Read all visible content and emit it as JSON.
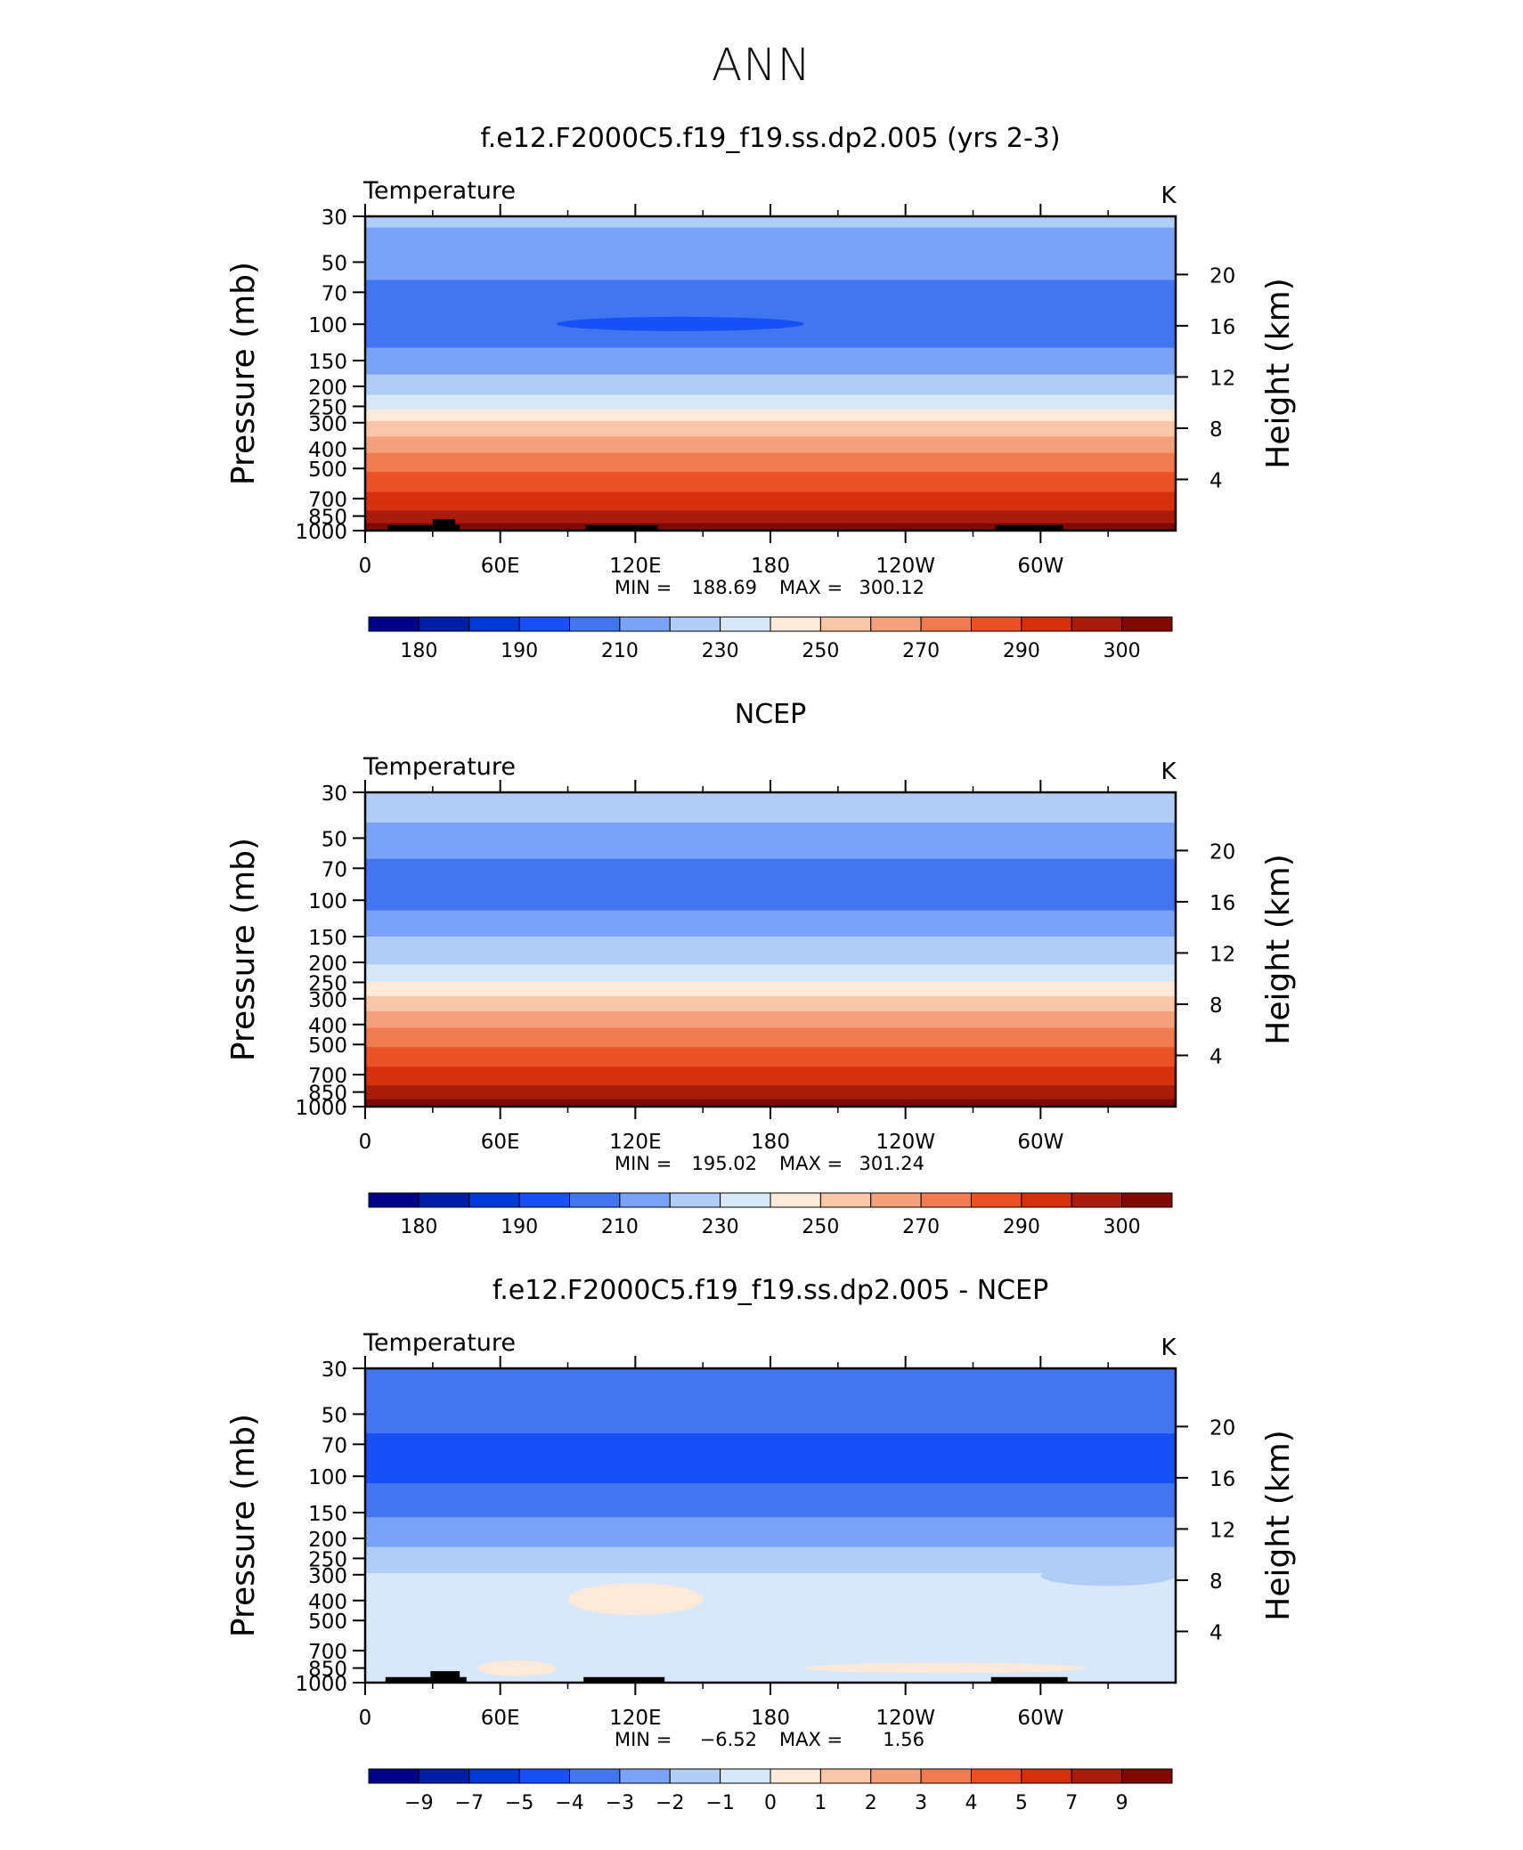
{
  "title": "ANN",
  "chart_data": [
    {
      "type": "heatmap",
      "title": "f.e12.F2000C5.f19_f19.ss.dp2.005 (yrs 2-3)",
      "variable": "Temperature",
      "units": "K",
      "ylabel": "Pressure  (mb)",
      "ylabel_right": "Height  (km)",
      "x_ticks": [
        "0",
        "60E",
        "120E",
        "180",
        "120W",
        "60W"
      ],
      "x_range": [
        0,
        360
      ],
      "y_ticks": [
        "30",
        "50",
        "70",
        "100",
        "150",
        "200",
        "250",
        "300",
        "400",
        "500",
        "700",
        "850",
        "1000"
      ],
      "y_right_ticks": [
        "20",
        "16",
        "12",
        "8",
        "4"
      ],
      "stats": {
        "min_label": "MIN  =",
        "min": "188.69",
        "max_label": "MAX  =",
        "max": "300.12"
      },
      "levels": [
        "175",
        "180",
        "185",
        "190",
        "200",
        "210",
        "220",
        "230",
        "240",
        "250",
        "260",
        "270",
        "280",
        "290",
        "295",
        "300"
      ],
      "colorbar_labels": [
        "180",
        "190",
        "210",
        "230",
        "250",
        "270",
        "290",
        "300"
      ],
      "bands": [
        {
          "p_top": 30,
          "p_bottom": 34,
          "color_index": 6
        },
        {
          "p_top": 34,
          "p_bottom": 61,
          "color_index": 5
        },
        {
          "p_top": 61,
          "p_bottom": 130,
          "color_index": 4
        },
        {
          "p_top": 130,
          "p_bottom": 175,
          "color_index": 5
        },
        {
          "p_top": 175,
          "p_bottom": 220,
          "color_index": 6
        },
        {
          "p_top": 220,
          "p_bottom": 260,
          "color_index": 7
        },
        {
          "p_top": 260,
          "p_bottom": 295,
          "color_index": 8
        },
        {
          "p_top": 295,
          "p_bottom": 350,
          "color_index": 9
        },
        {
          "p_top": 350,
          "p_bottom": 420,
          "color_index": 10
        },
        {
          "p_top": 420,
          "p_bottom": 520,
          "color_index": 11
        },
        {
          "p_top": 520,
          "p_bottom": 650,
          "color_index": 12
        },
        {
          "p_top": 650,
          "p_bottom": 800,
          "color_index": 13
        },
        {
          "p_top": 800,
          "p_bottom": 920,
          "color_index": 14
        },
        {
          "p_top": 920,
          "p_bottom": 1000,
          "color_index": 15
        }
      ],
      "patches": [
        {
          "lon_start": 85,
          "lon_end": 195,
          "p_top": 92,
          "p_bottom": 108,
          "color_index": 3
        }
      ],
      "topography": [
        {
          "lon_start": 10,
          "lon_end": 42,
          "p_top": 940
        },
        {
          "lon_start": 30,
          "lon_end": 40,
          "p_top": 880
        },
        {
          "lon_start": 98,
          "lon_end": 130,
          "p_top": 940
        },
        {
          "lon_start": 280,
          "lon_end": 310,
          "p_top": 940
        }
      ]
    },
    {
      "type": "heatmap",
      "title": "NCEP",
      "variable": "Temperature",
      "units": "K",
      "ylabel": "Pressure  (mb)",
      "ylabel_right": "Height  (km)",
      "x_ticks": [
        "0",
        "60E",
        "120E",
        "180",
        "120W",
        "60W"
      ],
      "x_range": [
        0,
        360
      ],
      "y_ticks": [
        "30",
        "50",
        "70",
        "100",
        "150",
        "200",
        "250",
        "300",
        "400",
        "500",
        "700",
        "850",
        "1000"
      ],
      "y_right_ticks": [
        "20",
        "16",
        "12",
        "8",
        "4"
      ],
      "stats": {
        "min_label": "MIN  =",
        "min": "195.02",
        "max_label": "MAX  =",
        "max": "301.24"
      },
      "levels": [
        "175",
        "180",
        "185",
        "190",
        "200",
        "210",
        "220",
        "230",
        "240",
        "250",
        "260",
        "270",
        "280",
        "290",
        "295",
        "300"
      ],
      "colorbar_labels": [
        "180",
        "190",
        "210",
        "230",
        "250",
        "270",
        "290",
        "300"
      ],
      "bands": [
        {
          "p_top": 30,
          "p_bottom": 42,
          "color_index": 6
        },
        {
          "p_top": 42,
          "p_bottom": 63,
          "color_index": 5
        },
        {
          "p_top": 63,
          "p_bottom": 112,
          "color_index": 4
        },
        {
          "p_top": 112,
          "p_bottom": 150,
          "color_index": 5
        },
        {
          "p_top": 150,
          "p_bottom": 205,
          "color_index": 6
        },
        {
          "p_top": 205,
          "p_bottom": 248,
          "color_index": 7
        },
        {
          "p_top": 248,
          "p_bottom": 292,
          "color_index": 8
        },
        {
          "p_top": 292,
          "p_bottom": 345,
          "color_index": 9
        },
        {
          "p_top": 345,
          "p_bottom": 415,
          "color_index": 10
        },
        {
          "p_top": 415,
          "p_bottom": 515,
          "color_index": 11
        },
        {
          "p_top": 515,
          "p_bottom": 640,
          "color_index": 12
        },
        {
          "p_top": 640,
          "p_bottom": 790,
          "color_index": 13
        },
        {
          "p_top": 790,
          "p_bottom": 920,
          "color_index": 14
        },
        {
          "p_top": 920,
          "p_bottom": 1000,
          "color_index": 15
        }
      ],
      "patches": [],
      "topography": []
    },
    {
      "type": "heatmap",
      "title": "f.e12.F2000C5.f19_f19.ss.dp2.005 - NCEP",
      "variable": "Temperature",
      "units": "K",
      "ylabel": "Pressure  (mb)",
      "ylabel_right": "Height  (km)",
      "x_ticks": [
        "0",
        "60E",
        "120E",
        "180",
        "120W",
        "60W"
      ],
      "x_range": [
        0,
        360
      ],
      "y_ticks": [
        "30",
        "50",
        "70",
        "100",
        "150",
        "200",
        "250",
        "300",
        "400",
        "500",
        "700",
        "850",
        "1000"
      ],
      "y_right_ticks": [
        "20",
        "16",
        "12",
        "8",
        "4"
      ],
      "stats": {
        "min_label": "MIN  =",
        "min": "−6.52",
        "max_label": "MAX  =",
        "max": "1.56"
      },
      "levels": [
        "−11",
        "−9",
        "−7",
        "−5",
        "−4",
        "−3",
        "−2",
        "−1",
        "0",
        "1",
        "2",
        "3",
        "4",
        "5",
        "7",
        "9"
      ],
      "colorbar_labels": [
        "−9",
        "−7",
        "−5",
        "−4",
        "−3",
        "−2",
        "−1",
        "0",
        "1",
        "2",
        "3",
        "4",
        "5",
        "7",
        "9"
      ],
      "bands": [
        {
          "p_top": 30,
          "p_bottom": 62,
          "color_index": 4
        },
        {
          "p_top": 62,
          "p_bottom": 108,
          "color_index": 3
        },
        {
          "p_top": 108,
          "p_bottom": 158,
          "color_index": 4
        },
        {
          "p_top": 158,
          "p_bottom": 220,
          "color_index": 5
        },
        {
          "p_top": 220,
          "p_bottom": 295,
          "color_index": 6
        },
        {
          "p_top": 295,
          "p_bottom": 1000,
          "color_index": 7
        }
      ],
      "patches": [
        {
          "lon_start": 90,
          "lon_end": 150,
          "p_top": 330,
          "p_bottom": 470,
          "color_index": 8
        },
        {
          "lon_start": 50,
          "lon_end": 85,
          "p_top": 780,
          "p_bottom": 930,
          "color_index": 8
        },
        {
          "lon_start": 195,
          "lon_end": 320,
          "p_top": 800,
          "p_bottom": 900,
          "color_index": 8
        },
        {
          "lon_start": 300,
          "lon_end": 360,
          "p_top": 270,
          "p_bottom": 340,
          "color_index": 6
        }
      ],
      "topography": [
        {
          "lon_start": 9,
          "lon_end": 45,
          "p_top": 940
        },
        {
          "lon_start": 29,
          "lon_end": 42,
          "p_top": 880
        },
        {
          "lon_start": 97,
          "lon_end": 133,
          "p_top": 940
        },
        {
          "lon_start": 278,
          "lon_end": 312,
          "p_top": 940
        }
      ]
    }
  ],
  "palette": [
    "#00008a",
    "#001fa6",
    "#0038d5",
    "#1750f5",
    "#4276f0",
    "#7ba3f5",
    "#b0cdf8",
    "#d8e8fb",
    "#fde9d9",
    "#f9c6aa",
    "#f5a07c",
    "#f07a52",
    "#eb5126",
    "#d4310f",
    "#a91b0a",
    "#7d0a05"
  ]
}
